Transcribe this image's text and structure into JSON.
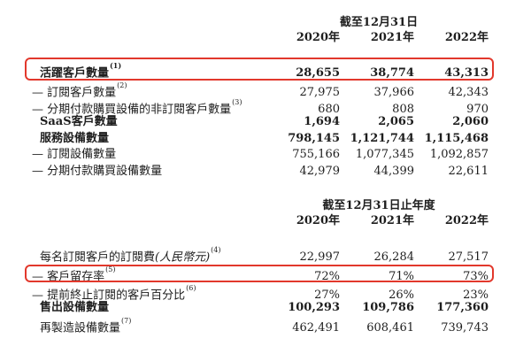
{
  "accent": {
    "highlight_border": "#e2382c",
    "text_color": "#1e1e1e",
    "background": "#ffffff"
  },
  "tables": [
    {
      "period_header": "截至12月31日",
      "year_headers": [
        "2020年",
        "2021年",
        "2022年"
      ],
      "rows": [
        {
          "label": "活躍客戶數量",
          "sup": "(1)",
          "values": [
            "28,655",
            "38,774",
            "43,313"
          ]
        },
        {
          "label": "— 訂閱客戶數量",
          "sup": "(2)",
          "values": [
            "27,975",
            "37,966",
            "42,343"
          ]
        },
        {
          "label": "— 分期付款購買設備的非訂閱客戶數量",
          "sup": "(3)",
          "values": [
            "680",
            "808",
            "970"
          ]
        },
        {
          "label": "SaaS客戶數量",
          "values": [
            "1,694",
            "2,065",
            "2,060"
          ]
        },
        {
          "label": "服務設備數量",
          "values": [
            "798,145",
            "1,121,744",
            "1,115,468"
          ]
        },
        {
          "label": "— 訂閱設備數量",
          "values": [
            "755,166",
            "1,077,345",
            "1,092,857"
          ]
        },
        {
          "label": "— 分期付款購買設備數量",
          "values": [
            "42,979",
            "44,399",
            "22,611"
          ]
        }
      ]
    },
    {
      "period_header": "截至12月31日止年度",
      "year_headers": [
        "2020年",
        "2021年",
        "2022年"
      ],
      "rows": [
        {
          "label": "每名訂閱客戶的訂閱費",
          "label_italic": "(人民幣元)",
          "sup": "(4)",
          "values": [
            "22,997",
            "26,284",
            "27,517"
          ]
        },
        {
          "label": "— 客戶留存率",
          "sup": "(5)",
          "values": [
            "72%",
            "71%",
            "73%"
          ]
        },
        {
          "label": "— 提前終止訂閱的客戶百分比",
          "sup": "(6)",
          "values": [
            "27%",
            "26%",
            "23%"
          ]
        },
        {
          "label": "售出設備數量",
          "values": [
            "100,293",
            "109,786",
            "177,360"
          ]
        },
        {
          "label": "再製造設備數量",
          "sup": "(7)",
          "values": [
            "462,491",
            "608,461",
            "739,743"
          ]
        }
      ]
    }
  ]
}
